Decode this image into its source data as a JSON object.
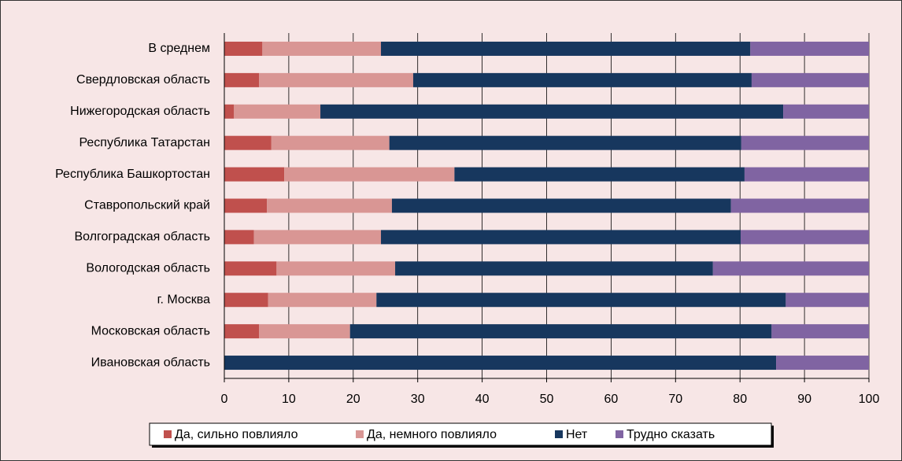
{
  "chart_data": {
    "type": "stacked-bar-horizontal",
    "categories": [
      "В среднем",
      "Свердловская область",
      "Нижегородская область",
      "Республика Татарстан",
      "Республика Башкортостан",
      "Ставропольский край",
      "Волгоградская область",
      "Вологодская область",
      "г. Москва",
      "Московская область",
      "Ивановская область"
    ],
    "series": [
      {
        "name": "Да, сильно повлияло",
        "color": "#c0504d",
        "values": [
          5.9,
          5.4,
          1.5,
          7.3,
          9.3,
          6.6,
          4.6,
          8.1,
          6.8,
          5.4,
          0
        ]
      },
      {
        "name": "Да, немного повлияло",
        "color": "#d99694",
        "values": [
          18.4,
          23.9,
          13.4,
          18.3,
          26.4,
          19.4,
          19.7,
          18.4,
          16.8,
          14.1,
          0
        ]
      },
      {
        "name": "Нет",
        "color": "#17375e",
        "values": [
          57.3,
          52.5,
          71.8,
          54.6,
          45.0,
          52.6,
          55.8,
          49.3,
          63.5,
          65.4,
          85.6
        ]
      },
      {
        "name": "Трудно сказать",
        "color": "#8064a2",
        "values": [
          18.4,
          18.2,
          13.3,
          19.8,
          19.3,
          21.4,
          19.9,
          24.2,
          12.9,
          15.1,
          14.4
        ]
      }
    ],
    "xlim": [
      0,
      100
    ],
    "xticks": [
      0,
      10,
      20,
      30,
      40,
      50,
      60,
      70,
      80,
      90,
      100
    ],
    "grid": true,
    "legend": "bottom"
  }
}
